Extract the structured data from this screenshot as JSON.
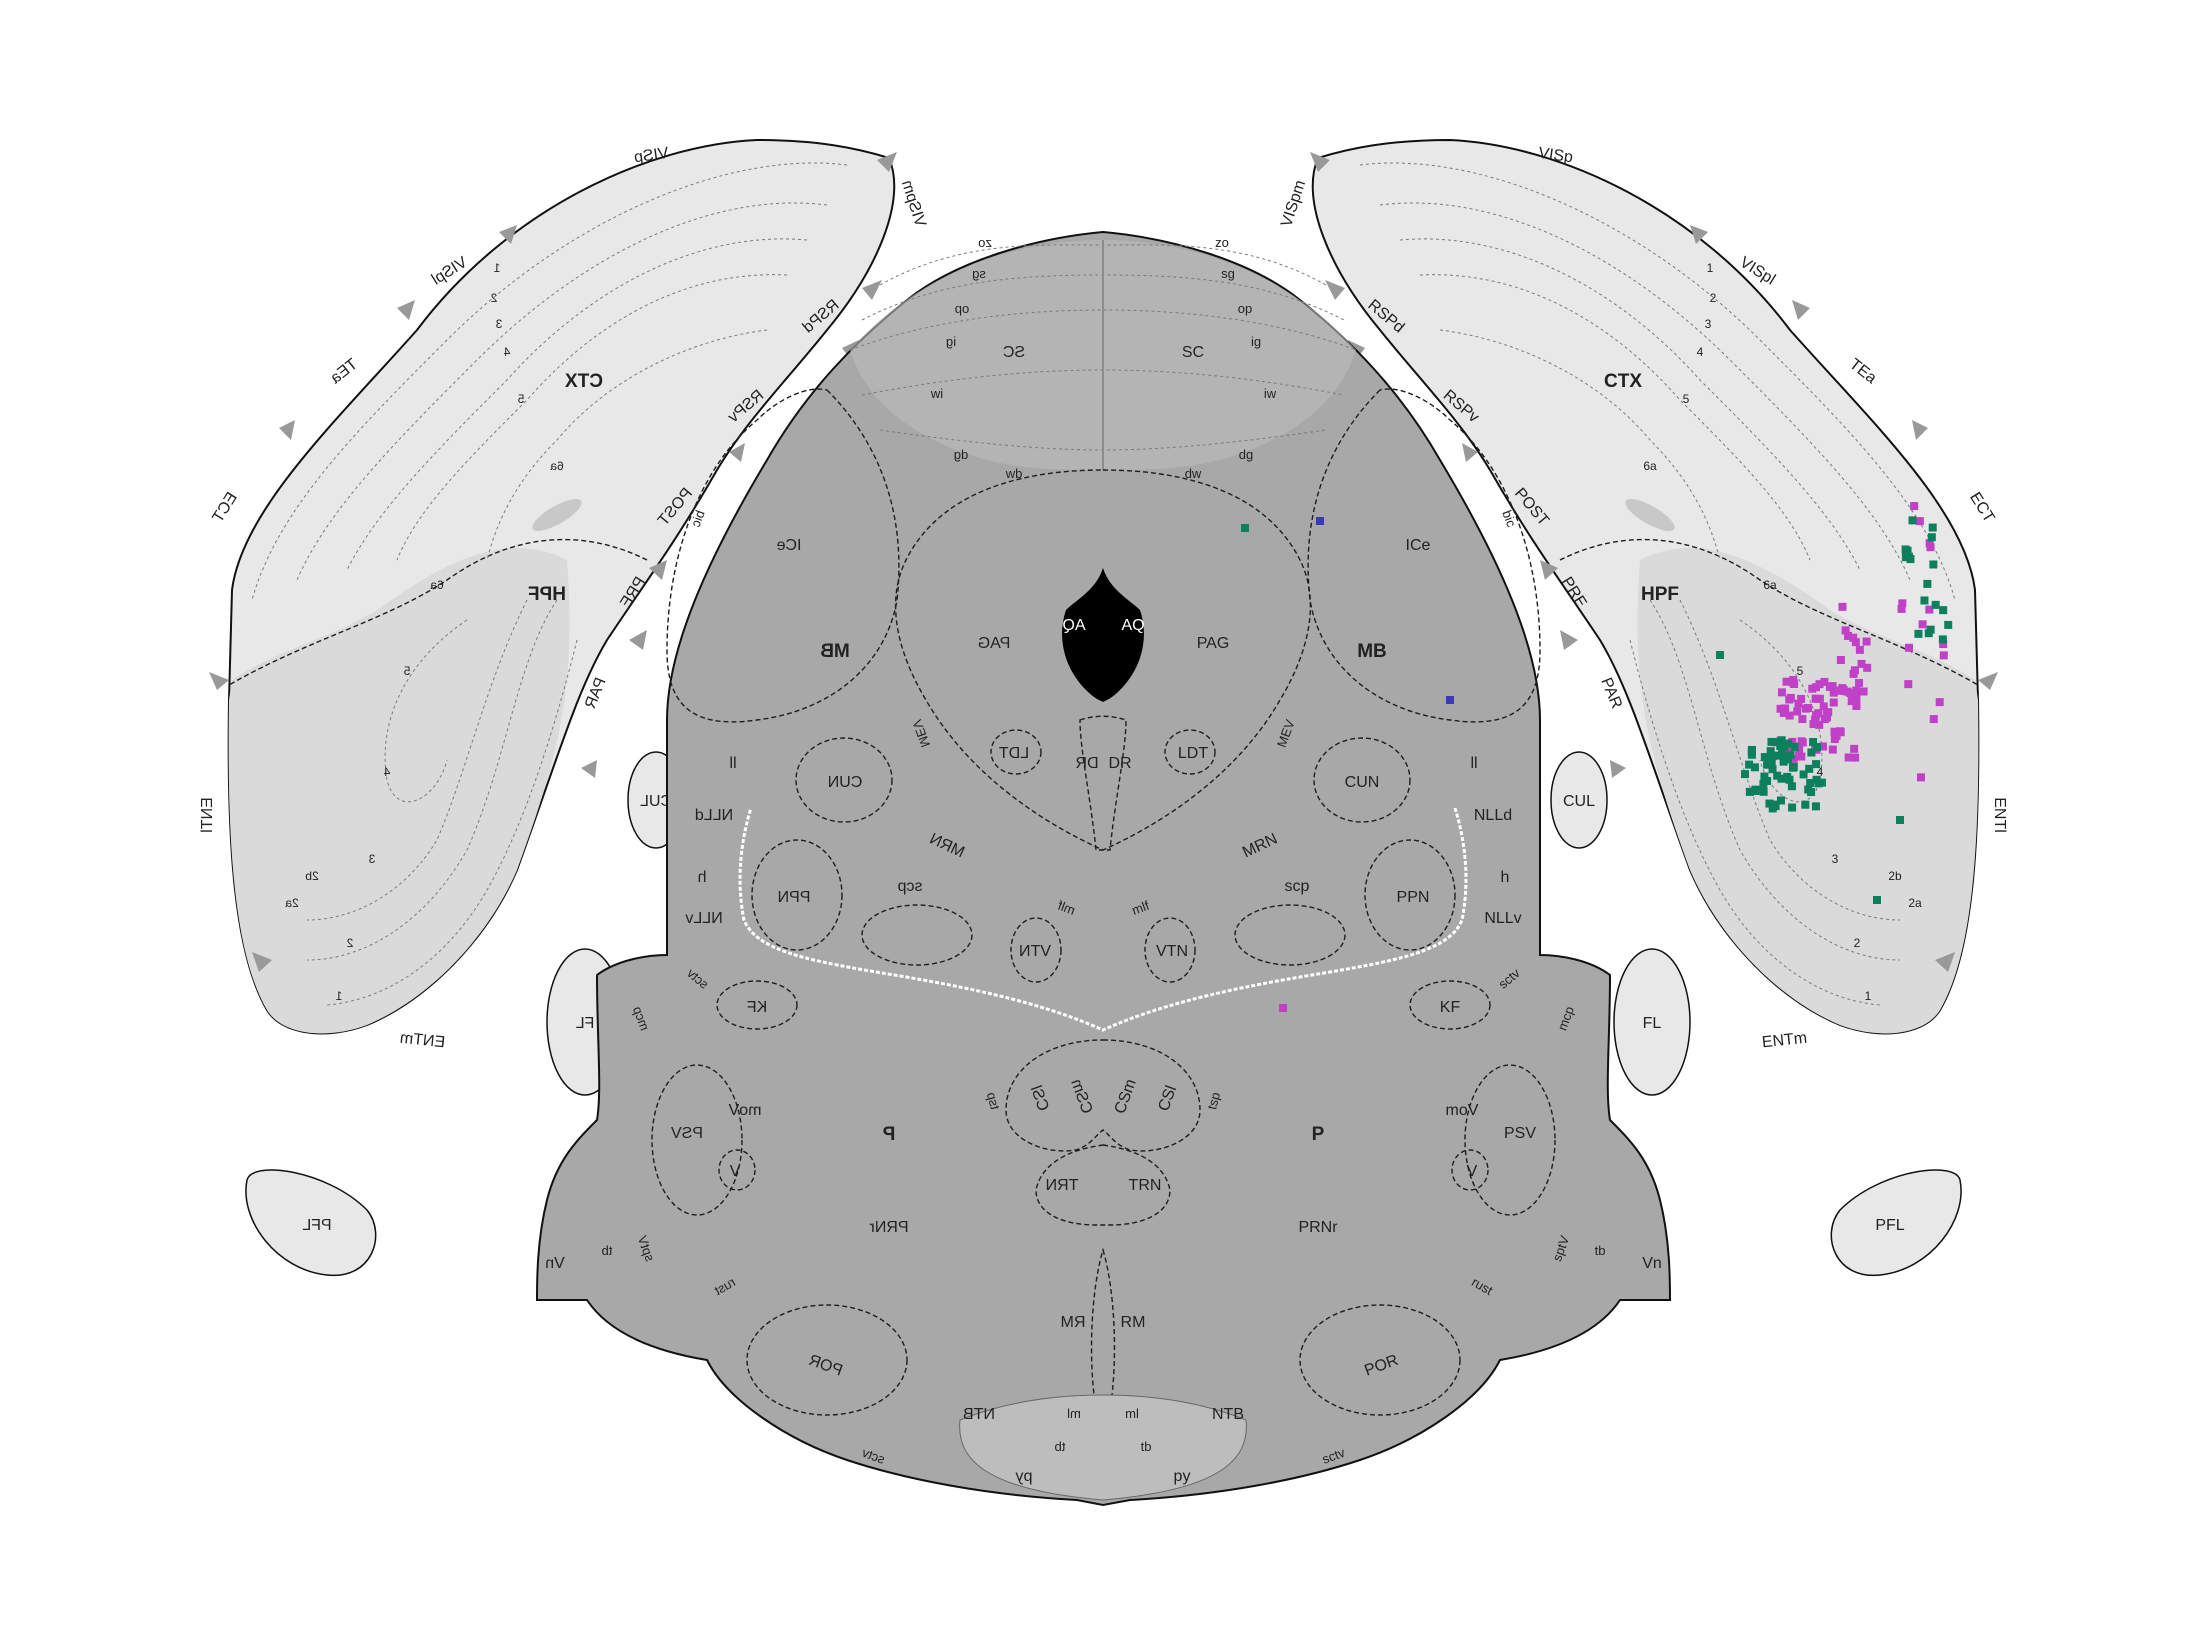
{
  "colors": {
    "cortex_fill": "#e8e8e8",
    "brainstem_fill": "#a8a8a8",
    "brainstem_light": "#bdbdbd",
    "triangle": "#999999",
    "aqueduct": "#000000",
    "marker_magenta": "#c040c8",
    "marker_green": "#0c7f5c",
    "marker_blue": "#3a3ab4"
  },
  "left_hemisphere_labels": {
    "visp": "VISp",
    "vispm": "VISpm",
    "vispl": "VISpl",
    "tea": "TEa",
    "ect": "ECT",
    "rspd": "RSPd",
    "rspv": "RSPv",
    "post": "POST",
    "pre": "PRE",
    "par": "PAR",
    "ctx": "CTX",
    "hpf": "HPF",
    "entl": "ENTl",
    "entm": "ENTm",
    "l1": "1",
    "l2": "2",
    "l3": "3",
    "l4": "4",
    "l5": "5",
    "l6a": "6a",
    "hpf_6a": "6a",
    "hpf_5": "5",
    "hpf_4": "4",
    "hpf_3": "3",
    "hpf_2": "2",
    "hpf_2a": "2a",
    "hpf_2b": "2b",
    "hpf_1": "1"
  },
  "right_hemisphere_labels": {
    "visp": "VISp",
    "vispm": "VISpm",
    "vispl": "VISpl",
    "tea": "TEa",
    "ect": "ECT",
    "rspd": "RSPd",
    "rspv": "RSPv",
    "post": "POST",
    "pre": "PRE",
    "par": "PAR",
    "ctx": "CTX",
    "hpf": "HPF",
    "entl": "ENTl",
    "entm": "ENTm",
    "l1": "1",
    "l2": "2",
    "l3": "3",
    "l4": "4",
    "l5": "5",
    "l6a": "6a",
    "hpf_6a": "6a",
    "hpf_5": "5",
    "hpf_4": "4",
    "hpf_3": "3",
    "hpf_2": "2",
    "hpf_2a": "2a",
    "hpf_2b": "2b",
    "hpf_1": "1"
  },
  "brainstem_labels": {
    "zo": "zo",
    "sg": "sg",
    "op": "op",
    "ig": "ig",
    "sc": "SC",
    "iw": "iw",
    "dg": "dg",
    "dw": "dw",
    "bic": "bic",
    "ice": "ICe",
    "mb": "MB",
    "pag": "PAG",
    "aq": "AQ",
    "mev": "MEV",
    "ldt": "LDT",
    "dr": "DR",
    "ll": "ll",
    "cun": "CUN",
    "nlld": "NLLd",
    "mrn": "MRN",
    "h": "h",
    "ppn": "PPN",
    "scp": "scp",
    "nllv": "NLLv",
    "mlf": "mlf",
    "vtn": "VTN",
    "sctv": "sctv",
    "mcp": "mcp",
    "kf": "KF",
    "tsp": "tsp",
    "csl": "CSl",
    "csm": "CSm",
    "p": "P",
    "mov": "moV",
    "psv": "PSV",
    "v": "V",
    "trn": "TRN",
    "sptv": "sptV",
    "tb": "tb",
    "vn": "Vn",
    "prnr": "PRNr",
    "rust": "rust",
    "mrm": "RM",
    "por": "POR",
    "ntb": "NTB",
    "ml": "ml",
    "tb2": "tb",
    "py": "py"
  },
  "side_structures": {
    "cul": "CUL",
    "fl": "FL",
    "pfl": "PFL"
  },
  "marker_colors_present": [
    "magenta",
    "green",
    "blue"
  ]
}
